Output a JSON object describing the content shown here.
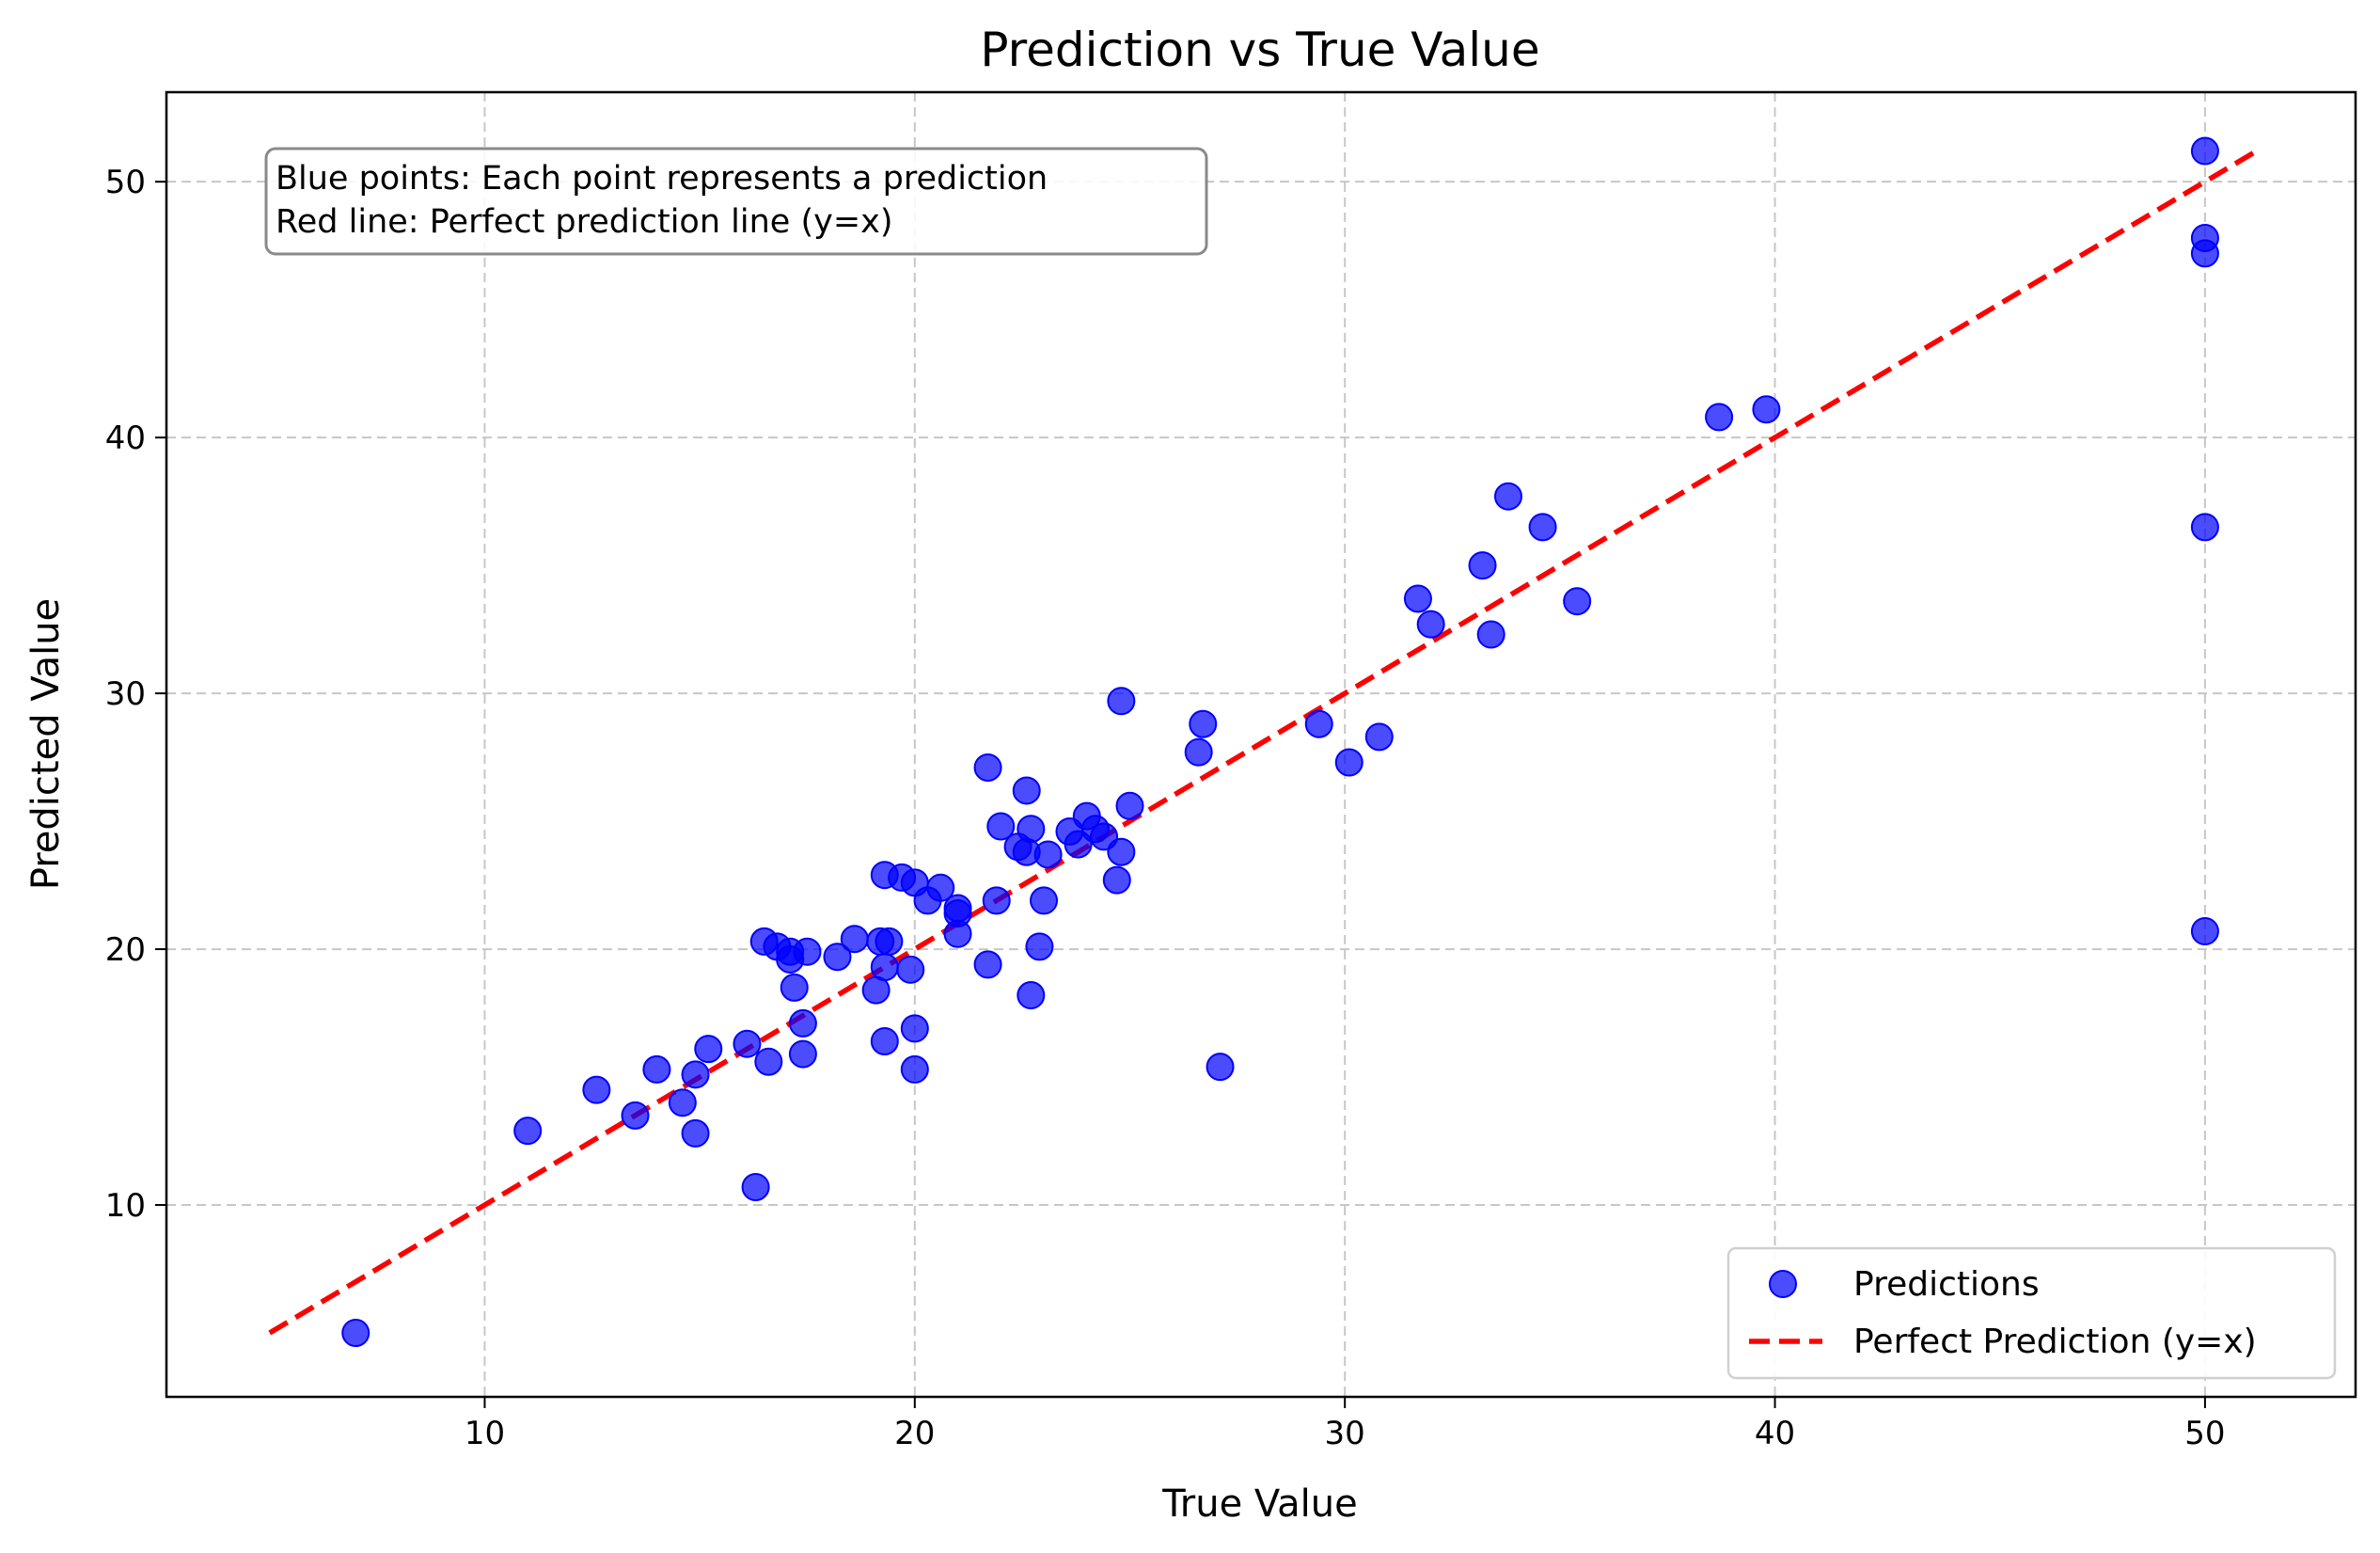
{
  "chart_data": {
    "type": "scatter",
    "title": "Prediction vs True Value",
    "xlabel": "True Value",
    "ylabel": "Predicted Value",
    "xlim": [
      2.6,
      53.5
    ],
    "ylim": [
      2.5,
      53.5
    ],
    "xticks": [
      10,
      20,
      30,
      40,
      50
    ],
    "yticks": [
      10,
      20,
      30,
      40,
      50
    ],
    "grid": true,
    "legend_position": "lower-right",
    "annotation": [
      "Blue points: Each point represents a prediction",
      "Red line: Perfect prediction line (y=x)"
    ],
    "series": [
      {
        "name": "Predictions",
        "type": "scatter",
        "color": "#0000ff",
        "points": [
          [
            7.0,
            5.0
          ],
          [
            11.0,
            12.9
          ],
          [
            12.6,
            14.5
          ],
          [
            13.5,
            13.5
          ],
          [
            14.0,
            15.3
          ],
          [
            14.6,
            14.0
          ],
          [
            14.9,
            15.1
          ],
          [
            14.9,
            12.8
          ],
          [
            15.2,
            16.1
          ],
          [
            16.1,
            16.3
          ],
          [
            16.3,
            10.7
          ],
          [
            16.5,
            20.3
          ],
          [
            16.6,
            15.6
          ],
          [
            16.8,
            20.1
          ],
          [
            17.1,
            19.9
          ],
          [
            17.1,
            19.6
          ],
          [
            17.2,
            18.5
          ],
          [
            17.4,
            17.1
          ],
          [
            17.4,
            15.9
          ],
          [
            17.5,
            19.9
          ],
          [
            18.2,
            19.7
          ],
          [
            18.6,
            20.4
          ],
          [
            19.1,
            18.4
          ],
          [
            19.2,
            20.3
          ],
          [
            19.3,
            19.3
          ],
          [
            19.4,
            20.3
          ],
          [
            19.3,
            16.4
          ],
          [
            19.3,
            22.9
          ],
          [
            19.7,
            22.8
          ],
          [
            19.9,
            19.2
          ],
          [
            20.0,
            22.6
          ],
          [
            20.0,
            16.9
          ],
          [
            20.0,
            15.3
          ],
          [
            20.3,
            21.9
          ],
          [
            20.6,
            22.4
          ],
          [
            21.0,
            21.6
          ],
          [
            21.0,
            21.4
          ],
          [
            21.0,
            20.6
          ],
          [
            21.7,
            27.1
          ],
          [
            21.7,
            19.4
          ],
          [
            21.9,
            21.9
          ],
          [
            22.0,
            24.8
          ],
          [
            22.4,
            24.0
          ],
          [
            22.6,
            23.8
          ],
          [
            22.6,
            26.2
          ],
          [
            22.7,
            24.7
          ],
          [
            22.7,
            18.2
          ],
          [
            22.9,
            20.1
          ],
          [
            23.0,
            21.9
          ],
          [
            23.1,
            23.7
          ],
          [
            23.6,
            24.6
          ],
          [
            23.8,
            24.1
          ],
          [
            24.0,
            25.2
          ],
          [
            24.2,
            24.7
          ],
          [
            24.4,
            24.4
          ],
          [
            24.7,
            22.7
          ],
          [
            24.8,
            23.8
          ],
          [
            24.8,
            29.7
          ],
          [
            25.0,
            25.6
          ],
          [
            26.6,
            27.7
          ],
          [
            26.7,
            28.8
          ],
          [
            27.1,
            15.4
          ],
          [
            29.4,
            28.8
          ],
          [
            30.1,
            27.3
          ],
          [
            30.8,
            28.3
          ],
          [
            31.7,
            33.7
          ],
          [
            32.0,
            32.7
          ],
          [
            33.2,
            35.0
          ],
          [
            33.4,
            32.3
          ],
          [
            33.8,
            37.7
          ],
          [
            34.6,
            36.5
          ],
          [
            35.4,
            33.6
          ],
          [
            38.7,
            40.8
          ],
          [
            39.8,
            41.1
          ],
          [
            50.0,
            51.2
          ],
          [
            50.0,
            47.8
          ],
          [
            50.0,
            47.2
          ],
          [
            50.0,
            36.5
          ],
          [
            50.0,
            20.7
          ]
        ]
      },
      {
        "name": "Perfect Prediction (y=x)",
        "type": "line",
        "style": "dashed",
        "color": "#ff0000",
        "points": [
          [
            5.0,
            5.0
          ],
          [
            51.2,
            51.2
          ]
        ]
      }
    ]
  }
}
